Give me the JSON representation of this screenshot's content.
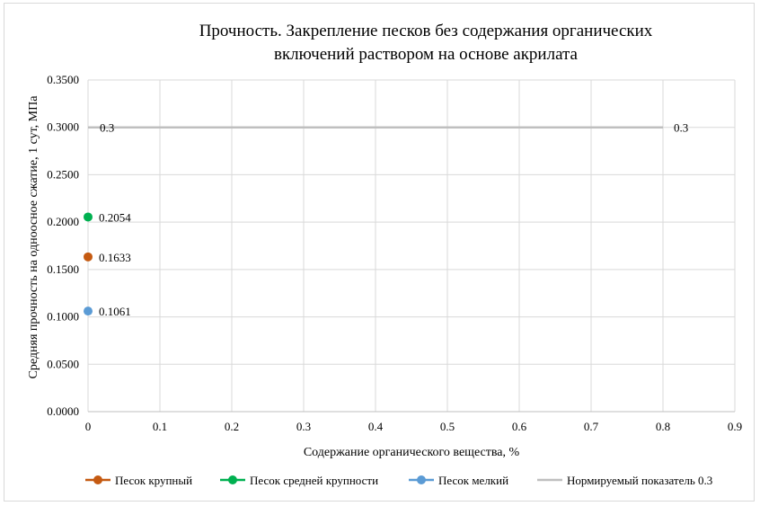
{
  "chart_data": {
    "type": "scatter",
    "title_lines": [
      "Прочность. Закрепление песков без содержания органических",
      "включений раствором на основе акрилата"
    ],
    "xlabel": "Содержание органического вещества, %",
    "ylabel": "Средняя прочность на одноосное сжатие, 1 сут, МПа",
    "xlim": [
      0,
      0.9
    ],
    "ylim": [
      0,
      0.35
    ],
    "x_ticks": [
      "0",
      "0.1",
      "0.2",
      "0.3",
      "0.4",
      "0.5",
      "0.6",
      "0.7",
      "0.8",
      "0.9"
    ],
    "y_ticks": [
      "0.0000",
      "0.0500",
      "0.1000",
      "0.1500",
      "0.2000",
      "0.2500",
      "0.3000",
      "0.3500"
    ],
    "grid": true,
    "legend_position": "bottom",
    "series": [
      {
        "name": "Песок крупный",
        "color": "#C55A11",
        "marker": "circle",
        "points": [
          {
            "x": 0,
            "y": 0.1633,
            "label": "0.1633"
          }
        ]
      },
      {
        "name": "Песок средней крупности",
        "color": "#00B050",
        "marker": "circle",
        "points": [
          {
            "x": 0,
            "y": 0.2054,
            "label": "0.2054"
          }
        ]
      },
      {
        "name": "Песок мелкий",
        "color": "#5B9BD5",
        "marker": "circle",
        "points": [
          {
            "x": 0,
            "y": 0.1061,
            "label": "0.1061"
          }
        ]
      },
      {
        "name": "Нормируемый показатель 0.3",
        "color": "#BFBFBF",
        "marker": "line",
        "points": [
          {
            "x": 0,
            "y": 0.3,
            "label": "0.3"
          },
          {
            "x": 0.8,
            "y": 0.3,
            "label": "0.3"
          }
        ]
      }
    ]
  }
}
